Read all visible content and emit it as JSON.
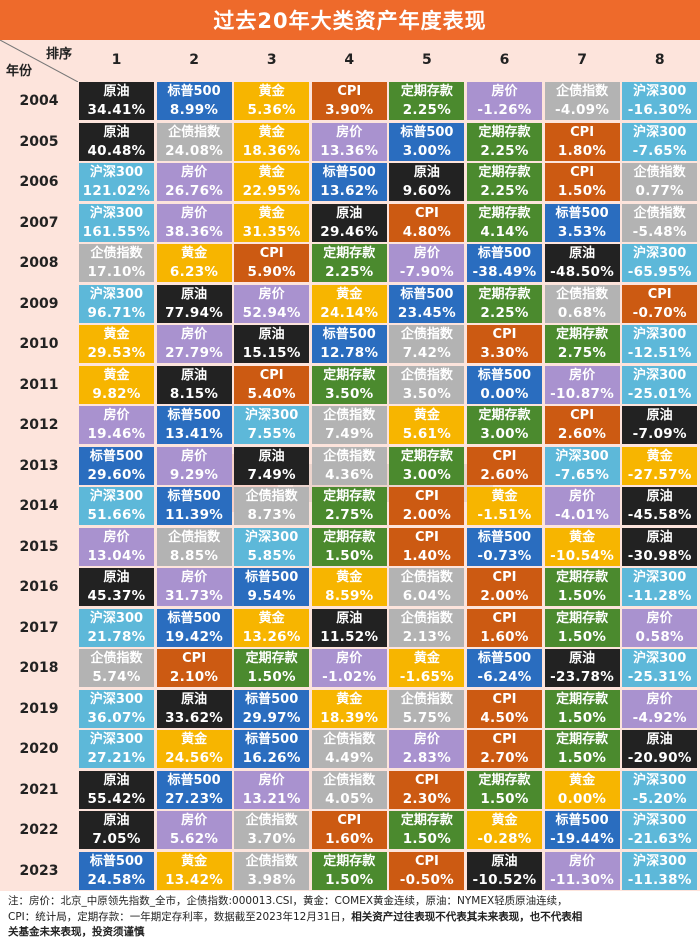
{
  "title": "过去20年大类资产年度表现",
  "header": {
    "rank_label": "排序",
    "year_label": "年份"
  },
  "columns": [
    "1",
    "2",
    "3",
    "4",
    "5",
    "6",
    "7",
    "8"
  ],
  "asset_colors": {
    "原油": "#222222",
    "标普500": "#2a6dbf",
    "黄金": "#f7b500",
    "CPI": "#cc5a12",
    "定期存款": "#4b8a2e",
    "房价": "#a992cf",
    "企债指数": "#b3b3b3",
    "沪深300": "#5db8d9"
  },
  "chart_data": {
    "type": "table",
    "title": "过去20年大类资产年度表现",
    "rows": [
      {
        "year": "2004",
        "cells": [
          [
            "原油",
            "34.41%"
          ],
          [
            "标普500",
            "8.99%"
          ],
          [
            "黄金",
            "5.36%"
          ],
          [
            "CPI",
            "3.90%"
          ],
          [
            "定期存款",
            "2.25%"
          ],
          [
            "房价",
            "-1.26%"
          ],
          [
            "企债指数",
            "-4.09%"
          ],
          [
            "沪深300",
            "-16.30%"
          ]
        ]
      },
      {
        "year": "2005",
        "cells": [
          [
            "原油",
            "40.48%"
          ],
          [
            "企债指数",
            "24.08%"
          ],
          [
            "黄金",
            "18.36%"
          ],
          [
            "房价",
            "13.36%"
          ],
          [
            "标普500",
            "3.00%"
          ],
          [
            "定期存款",
            "2.25%"
          ],
          [
            "CPI",
            "1.80%"
          ],
          [
            "沪深300",
            "-7.65%"
          ]
        ]
      },
      {
        "year": "2006",
        "cells": [
          [
            "沪深300",
            "121.02%"
          ],
          [
            "房价",
            "26.76%"
          ],
          [
            "黄金",
            "22.95%"
          ],
          [
            "标普500",
            "13.62%"
          ],
          [
            "原油",
            "9.60%"
          ],
          [
            "定期存款",
            "2.25%"
          ],
          [
            "CPI",
            "1.50%"
          ],
          [
            "企债指数",
            "0.77%"
          ]
        ]
      },
      {
        "year": "2007",
        "cells": [
          [
            "沪深300",
            "161.55%"
          ],
          [
            "房价",
            "38.36%"
          ],
          [
            "黄金",
            "31.35%"
          ],
          [
            "原油",
            "29.46%"
          ],
          [
            "CPI",
            "4.80%"
          ],
          [
            "定期存款",
            "4.14%"
          ],
          [
            "标普500",
            "3.53%"
          ],
          [
            "企债指数",
            "-5.48%"
          ]
        ]
      },
      {
        "year": "2008",
        "cells": [
          [
            "企债指数",
            "17.10%"
          ],
          [
            "黄金",
            "6.23%"
          ],
          [
            "CPI",
            "5.90%"
          ],
          [
            "定期存款",
            "2.25%"
          ],
          [
            "房价",
            "-7.90%"
          ],
          [
            "标普500",
            "-38.49%"
          ],
          [
            "原油",
            "-48.50%"
          ],
          [
            "沪深300",
            "-65.95%"
          ]
        ]
      },
      {
        "year": "2009",
        "cells": [
          [
            "沪深300",
            "96.71%"
          ],
          [
            "原油",
            "77.94%"
          ],
          [
            "房价",
            "52.94%"
          ],
          [
            "黄金",
            "24.14%"
          ],
          [
            "标普500",
            "23.45%"
          ],
          [
            "定期存款",
            "2.25%"
          ],
          [
            "企债指数",
            "0.68%"
          ],
          [
            "CPI",
            "-0.70%"
          ]
        ]
      },
      {
        "year": "2010",
        "cells": [
          [
            "黄金",
            "29.53%"
          ],
          [
            "房价",
            "27.79%"
          ],
          [
            "原油",
            "15.15%"
          ],
          [
            "标普500",
            "12.78%"
          ],
          [
            "企债指数",
            "7.42%"
          ],
          [
            "CPI",
            "3.30%"
          ],
          [
            "定期存款",
            "2.75%"
          ],
          [
            "沪深300",
            "-12.51%"
          ]
        ]
      },
      {
        "year": "2011",
        "cells": [
          [
            "黄金",
            "9.82%"
          ],
          [
            "原油",
            "8.15%"
          ],
          [
            "CPI",
            "5.40%"
          ],
          [
            "定期存款",
            "3.50%"
          ],
          [
            "企债指数",
            "3.50%"
          ],
          [
            "标普500",
            "0.00%"
          ],
          [
            "房价",
            "-10.87%"
          ],
          [
            "沪深300",
            "-25.01%"
          ]
        ]
      },
      {
        "year": "2012",
        "cells": [
          [
            "房价",
            "19.46%"
          ],
          [
            "标普500",
            "13.41%"
          ],
          [
            "沪深300",
            "7.55%"
          ],
          [
            "企债指数",
            "7.49%"
          ],
          [
            "黄金",
            "5.61%"
          ],
          [
            "定期存款",
            "3.00%"
          ],
          [
            "CPI",
            "2.60%"
          ],
          [
            "原油",
            "-7.09%"
          ]
        ]
      },
      {
        "year": "2013",
        "cells": [
          [
            "标普500",
            "29.60%"
          ],
          [
            "房价",
            "9.29%"
          ],
          [
            "原油",
            "7.49%"
          ],
          [
            "企债指数",
            "4.36%"
          ],
          [
            "定期存款",
            "3.00%"
          ],
          [
            "CPI",
            "2.60%"
          ],
          [
            "沪深300",
            "-7.65%"
          ],
          [
            "黄金",
            "-27.57%"
          ]
        ]
      },
      {
        "year": "2014",
        "cells": [
          [
            "沪深300",
            "51.66%"
          ],
          [
            "标普500",
            "11.39%"
          ],
          [
            "企债指数",
            "8.73%"
          ],
          [
            "定期存款",
            "2.75%"
          ],
          [
            "CPI",
            "2.00%"
          ],
          [
            "黄金",
            "-1.51%"
          ],
          [
            "房价",
            "-4.01%"
          ],
          [
            "原油",
            "-45.58%"
          ]
        ]
      },
      {
        "year": "2015",
        "cells": [
          [
            "房价",
            "13.04%"
          ],
          [
            "企债指数",
            "8.85%"
          ],
          [
            "沪深300",
            "5.85%"
          ],
          [
            "定期存款",
            "1.50%"
          ],
          [
            "CPI",
            "1.40%"
          ],
          [
            "标普500",
            "-0.73%"
          ],
          [
            "黄金",
            "-10.54%"
          ],
          [
            "原油",
            "-30.98%"
          ]
        ]
      },
      {
        "year": "2016",
        "cells": [
          [
            "原油",
            "45.37%"
          ],
          [
            "房价",
            "31.73%"
          ],
          [
            "标普500",
            "9.54%"
          ],
          [
            "黄金",
            "8.59%"
          ],
          [
            "企债指数",
            "6.04%"
          ],
          [
            "CPI",
            "2.00%"
          ],
          [
            "定期存款",
            "1.50%"
          ],
          [
            "沪深300",
            "-11.28%"
          ]
        ]
      },
      {
        "year": "2017",
        "cells": [
          [
            "沪深300",
            "21.78%"
          ],
          [
            "标普500",
            "19.42%"
          ],
          [
            "黄金",
            "13.26%"
          ],
          [
            "原油",
            "11.52%"
          ],
          [
            "企债指数",
            "2.13%"
          ],
          [
            "CPI",
            "1.60%"
          ],
          [
            "定期存款",
            "1.50%"
          ],
          [
            "房价",
            "0.58%"
          ]
        ]
      },
      {
        "year": "2018",
        "cells": [
          [
            "企债指数",
            "5.74%"
          ],
          [
            "CPI",
            "2.10%"
          ],
          [
            "定期存款",
            "1.50%"
          ],
          [
            "房价",
            "-1.02%"
          ],
          [
            "黄金",
            "-1.65%"
          ],
          [
            "标普500",
            "-6.24%"
          ],
          [
            "原油",
            "-23.78%"
          ],
          [
            "沪深300",
            "-25.31%"
          ]
        ]
      },
      {
        "year": "2019",
        "cells": [
          [
            "沪深300",
            "36.07%"
          ],
          [
            "原油",
            "33.62%"
          ],
          [
            "标普500",
            "29.97%"
          ],
          [
            "黄金",
            "18.39%"
          ],
          [
            "企债指数",
            "5.75%"
          ],
          [
            "CPI",
            "4.50%"
          ],
          [
            "定期存款",
            "1.50%"
          ],
          [
            "房价",
            "-4.92%"
          ]
        ]
      },
      {
        "year": "2020",
        "cells": [
          [
            "沪深300",
            "27.21%"
          ],
          [
            "黄金",
            "24.56%"
          ],
          [
            "标普500",
            "16.26%"
          ],
          [
            "企债指数",
            "4.49%"
          ],
          [
            "房价",
            "2.83%"
          ],
          [
            "CPI",
            "2.70%"
          ],
          [
            "定期存款",
            "1.50%"
          ],
          [
            "原油",
            "-20.90%"
          ]
        ]
      },
      {
        "year": "2021",
        "cells": [
          [
            "原油",
            "55.42%"
          ],
          [
            "标普500",
            "27.23%"
          ],
          [
            "房价",
            "13.21%"
          ],
          [
            "企债指数",
            "4.05%"
          ],
          [
            "CPI",
            "2.30%"
          ],
          [
            "定期存款",
            "1.50%"
          ],
          [
            "黄金",
            "0.00%"
          ],
          [
            "沪深300",
            "-5.20%"
          ]
        ]
      },
      {
        "year": "2022",
        "cells": [
          [
            "原油",
            "7.05%"
          ],
          [
            "房价",
            "5.62%"
          ],
          [
            "企债指数",
            "3.70%"
          ],
          [
            "CPI",
            "1.60%"
          ],
          [
            "定期存款",
            "1.50%"
          ],
          [
            "黄金",
            "-0.28%"
          ],
          [
            "标普500",
            "-19.44%"
          ],
          [
            "沪深300",
            "-21.63%"
          ]
        ]
      },
      {
        "year": "2023",
        "cells": [
          [
            "标普500",
            "24.58%"
          ],
          [
            "黄金",
            "13.42%"
          ],
          [
            "企债指数",
            "3.98%"
          ],
          [
            "定期存款",
            "1.50%"
          ],
          [
            "CPI",
            "-0.50%"
          ],
          [
            "原油",
            "-10.52%"
          ],
          [
            "房价",
            "-11.30%"
          ],
          [
            "沪深300",
            "-11.38%"
          ]
        ]
      }
    ]
  },
  "footnote": {
    "line1": "注：房价：北京_中原领先指数_全市，企债指数:000013.CSI，黄金：COMEX黄金连续，原油：NYMEX轻质原油连续，",
    "line2_plain": "CPI：统计局，定期存款：一年期定存利率，数据截至2023年12月31日，",
    "line2_bold": "相关资产过往表现不代表其未来表现，也不代表相",
    "line3_bold": "关基金未来表现，投资须谨慎"
  }
}
